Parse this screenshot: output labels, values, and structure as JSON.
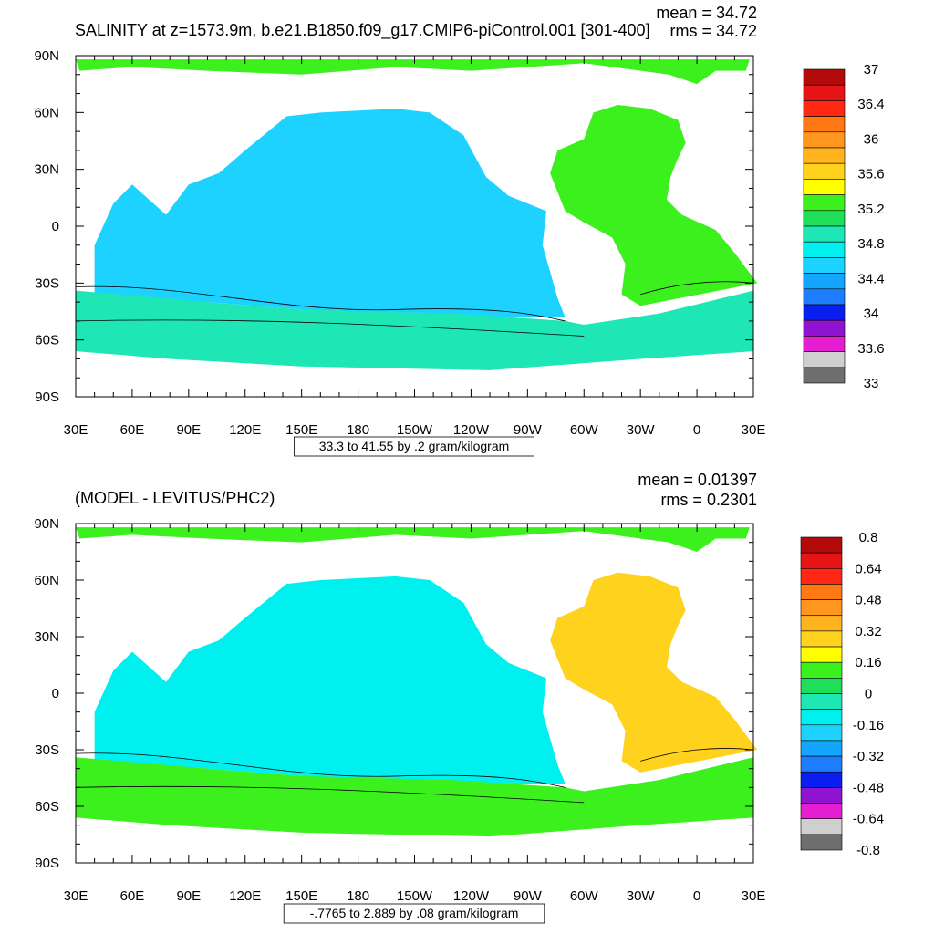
{
  "chart_data": [
    {
      "type": "heatmap",
      "title": "SALINITY at z=1573.9m, b.e21.B1850.f09_g17.CMIP6-piControl.001 [301-400]",
      "stats": {
        "mean": "mean = 34.72",
        "rms": "rms = 34.72"
      },
      "x_ticks": [
        "30E",
        "60E",
        "90E",
        "120E",
        "150E",
        "180",
        "150W",
        "120W",
        "90W",
        "60W",
        "30W",
        "0",
        "30E"
      ],
      "y_ticks": [
        "90N",
        "60N",
        "30N",
        "0",
        "30S",
        "60S",
        "90S"
      ],
      "xlim": [
        30,
        390
      ],
      "ylim": [
        -90,
        90
      ],
      "contour_info": "33.3 to 41.55 by .2 gram/kilogram",
      "colorbar": {
        "colors": [
          "#6e6e6e",
          "#cfcfcf",
          "#e61ed2",
          "#9013d2",
          "#0a1ef0",
          "#1e7dff",
          "#14a5ff",
          "#1ed2ff",
          "#00f0f0",
          "#1ee6b4",
          "#1ede5a",
          "#3cf01e",
          "#ffff00",
          "#ffd21e",
          "#ffb41e",
          "#ff961e",
          "#ff7814",
          "#ff2814",
          "#e61414",
          "#b40a0a"
        ],
        "labels": [
          "33",
          "33.6",
          "34",
          "34.4",
          "34.8",
          "35.2",
          "35.6",
          "36",
          "36.4",
          "37"
        ]
      },
      "regions": [
        {
          "name": "pacific",
          "color": "#1ed2ff"
        },
        {
          "name": "atlantic",
          "color": "#3cf01e"
        },
        {
          "name": "southern-ocean",
          "color": "#1ee6b4"
        },
        {
          "name": "arctic",
          "color": "#3cf01e"
        }
      ]
    },
    {
      "type": "heatmap",
      "title": "(MODEL - LEVITUS/PHC2)",
      "stats": {
        "mean": "mean = 0.01397",
        "rms": "rms = 0.2301"
      },
      "x_ticks": [
        "30E",
        "60E",
        "90E",
        "120E",
        "150E",
        "180",
        "150W",
        "120W",
        "90W",
        "60W",
        "30W",
        "0",
        "30E"
      ],
      "y_ticks": [
        "90N",
        "60N",
        "30N",
        "0",
        "30S",
        "60S",
        "90S"
      ],
      "xlim": [
        30,
        390
      ],
      "ylim": [
        -90,
        90
      ],
      "contour_info": "-.7765 to 2.889 by .08 gram/kilogram",
      "colorbar": {
        "colors": [
          "#6e6e6e",
          "#cfcfcf",
          "#e61ed2",
          "#9013d2",
          "#0a1ef0",
          "#1e7dff",
          "#14a5ff",
          "#1ed2ff",
          "#00f0f0",
          "#1ee6b4",
          "#1ede5a",
          "#3cf01e",
          "#ffff00",
          "#ffd21e",
          "#ffb41e",
          "#ff961e",
          "#ff7814",
          "#ff2814",
          "#e61414",
          "#b40a0a"
        ],
        "labels": [
          "-0.8",
          "-0.64",
          "-0.48",
          "-0.32",
          "-0.16",
          "0",
          "0.16",
          "0.32",
          "0.48",
          "0.64",
          "0.8"
        ]
      },
      "regions": [
        {
          "name": "pacific",
          "color": "#00f0f0"
        },
        {
          "name": "atlantic",
          "color": "#ffd21e"
        },
        {
          "name": "southern-ocean",
          "color": "#3cf01e"
        },
        {
          "name": "arctic",
          "color": "#3cf01e"
        }
      ]
    }
  ]
}
